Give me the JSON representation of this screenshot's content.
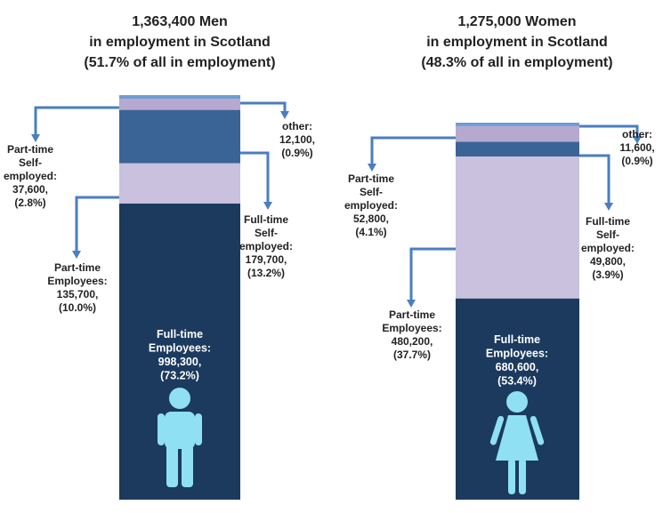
{
  "colors": {
    "ft_employees": "#1b3a5e",
    "pt_employees": "#c9c1de",
    "ft_self": "#3a6496",
    "pt_self": "#b6a9d0",
    "other": "#6e9bd4",
    "connector": "#4a7ec0",
    "icon": "#8ee0f2"
  },
  "chart_data": [
    {
      "type": "bar",
      "stacked": true,
      "title": [
        "1,363,400 Men",
        "in employment in Scotland",
        "(51.7% of all in employment)"
      ],
      "total": 1363400,
      "icon": "male-figure-icon",
      "segments": [
        {
          "category": "Full-time Employees",
          "value": 998300,
          "percent": 73.2,
          "text": [
            "Full-time",
            "Employees:",
            "998,300,",
            "(73.2%)"
          ]
        },
        {
          "category": "Part-time Employees",
          "value": 135700,
          "percent": 10.0,
          "text": [
            "Part-time",
            "Employees:",
            "135,700,",
            "(10.0%)"
          ]
        },
        {
          "category": "Full-time Self-employed",
          "value": 179700,
          "percent": 13.2,
          "text": [
            "Full-time",
            "Self-",
            "employed:",
            "179,700,",
            "(13.2%)"
          ]
        },
        {
          "category": "Part-time Self-employed",
          "value": 37600,
          "percent": 2.8,
          "text": [
            "Part-time",
            "Self-",
            "employed:",
            "37,600,",
            "(2.8%)"
          ]
        },
        {
          "category": "other",
          "value": 12100,
          "percent": 0.9,
          "text": [
            "other:",
            "12,100,",
            "(0.9%)"
          ]
        }
      ]
    },
    {
      "type": "bar",
      "stacked": true,
      "title": [
        "1,275,000 Women",
        "in employment in Scotland",
        "(48.3% of all in employment)"
      ],
      "total": 1275000,
      "icon": "female-figure-icon",
      "segments": [
        {
          "category": "Full-time Employees",
          "value": 680600,
          "percent": 53.4,
          "text": [
            "Full-time",
            "Employees:",
            "680,600,",
            "(53.4%)"
          ]
        },
        {
          "category": "Part-time Employees",
          "value": 480200,
          "percent": 37.7,
          "text": [
            "Part-time",
            "Employees:",
            "480,200,",
            "(37.7%)"
          ]
        },
        {
          "category": "Full-time Self-employed",
          "value": 49800,
          "percent": 3.9,
          "text": [
            "Full-time",
            "Self-",
            "employed:",
            "49,800,",
            "(3.9%)"
          ]
        },
        {
          "category": "Part-time Self-employed",
          "value": 52800,
          "percent": 4.1,
          "text": [
            "Part-time",
            "Self-",
            "employed:",
            "52,800,",
            "(4.1%)"
          ]
        },
        {
          "category": "other",
          "value": 11600,
          "percent": 0.9,
          "text": [
            "other:",
            "11,600,",
            "(0.9%)"
          ]
        }
      ]
    }
  ]
}
